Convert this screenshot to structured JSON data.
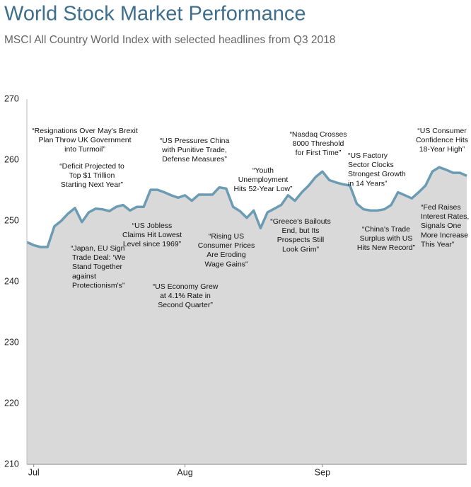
{
  "chart_data": {
    "type": "area",
    "title": "World Stock Market Performance",
    "subtitle": "MSCI All Country World Index with selected headlines from Q3 2018",
    "categories": [
      null,
      "Jul",
      null,
      null,
      null,
      null,
      null,
      null,
      null,
      null,
      null,
      null,
      null,
      null,
      null,
      null,
      null,
      null,
      null,
      null,
      null,
      null,
      null,
      "Aug",
      null,
      null,
      null,
      null,
      null,
      null,
      null,
      null,
      null,
      null,
      null,
      null,
      null,
      null,
      null,
      null,
      null,
      null,
      null,
      "Sep",
      null,
      null,
      null,
      null,
      null,
      null,
      null,
      null,
      null,
      null,
      null,
      null,
      null,
      null,
      null,
      null,
      null,
      null,
      null,
      null,
      null
    ],
    "values": [
      246.5,
      246.0,
      245.7,
      245.7,
      249.1,
      250.0,
      251.2,
      252.1,
      249.8,
      251.4,
      252.0,
      251.9,
      251.6,
      252.3,
      252.6,
      251.7,
      252.3,
      252.3,
      255.1,
      255.1,
      254.7,
      254.2,
      253.8,
      254.2,
      253.3,
      254.3,
      254.3,
      254.3,
      255.5,
      255.3,
      252.3,
      251.6,
      250.5,
      251.7,
      248.8,
      251.4,
      252.0,
      252.6,
      254.2,
      253.3,
      254.7,
      255.8,
      257.2,
      258.1,
      256.7,
      256.3,
      256.0,
      255.8,
      252.8,
      251.9,
      251.7,
      251.7,
      251.9,
      252.6,
      254.7,
      254.2,
      253.7,
      254.7,
      255.8,
      258.1,
      258.8,
      258.4,
      257.9,
      257.9,
      257.4
    ],
    "color": "#6b9cb4",
    "fill": "#d9d9d9",
    "ylim": [
      210,
      270
    ],
    "yticks": [
      210,
      220,
      230,
      240,
      250,
      260,
      270
    ],
    "annotations": [
      [
        "“Resignations Over May's Brexit",
        "Plan Throw UK Government",
        "into Turmoil”"
      ],
      [
        "“Deficit Projected to",
        "Top $1 Trillion",
        "Starting Next Year”"
      ],
      [
        "“Japan, EU Sign",
        "Trade Deal: ‘We",
        "Stand Together",
        "against",
        "Protectionism's”"
      ],
      [
        "“US Jobless",
        "Claims Hit Lowest",
        "Level since 1969”"
      ],
      [
        "“US Economy Grew",
        "at 4.1% Rate in",
        "Second Quarter”"
      ],
      [
        "“US Pressures China",
        "with Punitive Trade,",
        "Defense Measures”"
      ],
      [
        "“Rising US",
        "Consumer Prices",
        "Are Eroding",
        "Wage Gains”"
      ],
      [
        "“Youth",
        "Unemployment",
        "Hits 52-Year Low”"
      ],
      [
        "“Nasdaq Crosses",
        "8000 Threshold",
        "for First Time”"
      ],
      [
        "“Greece's Bailouts",
        "End, but Its",
        "Prospects Still",
        "Look Grim”"
      ],
      [
        "“US Factory",
        "Sector Clocks",
        "Strongest Growth",
        "in 14 Years”"
      ],
      [
        "“China's Trade",
        "Surplus with US",
        "Hits New Record”"
      ],
      [
        "“US Consumer",
        "Confidence Hits",
        "18-Year High”"
      ],
      [
        "“Fed Raises",
        "Interest Rates,",
        "Signals One",
        "More Increase",
        "This Year”"
      ]
    ]
  }
}
